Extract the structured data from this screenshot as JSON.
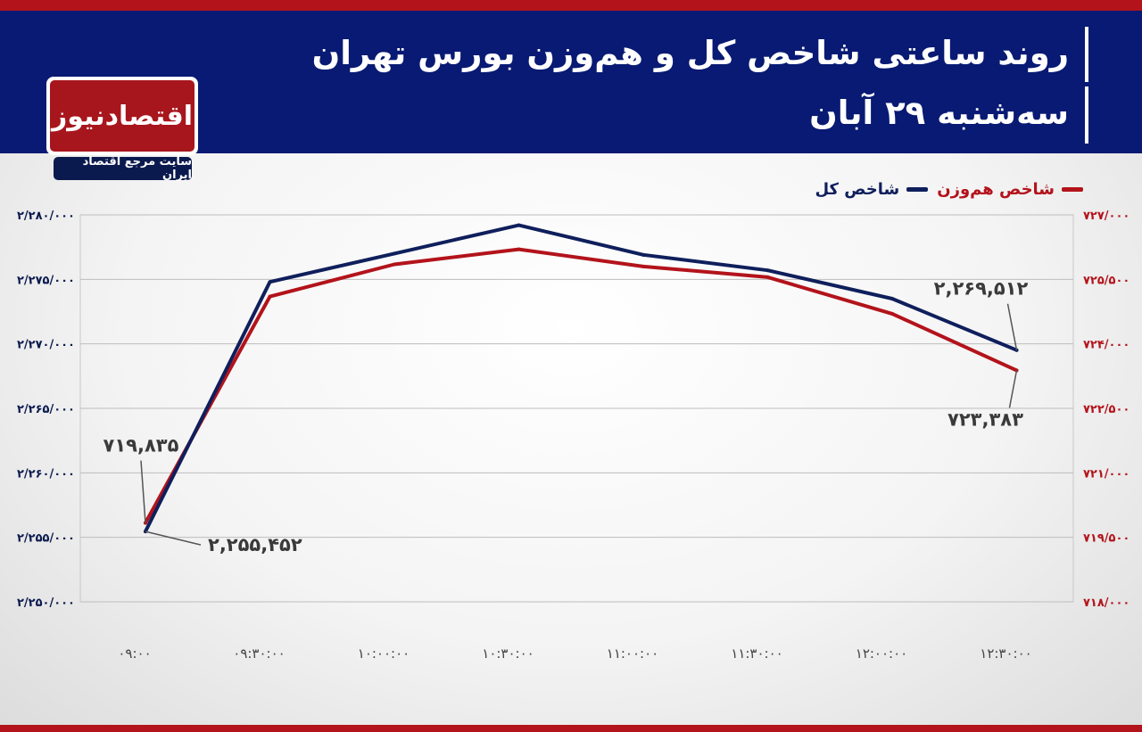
{
  "header": {
    "title": "روند ساعتی شاخص کل و هم‌وزن بورس تهران",
    "subtitle": "سه‌شنبه ۲۹ آبان"
  },
  "logo": {
    "name": "اقتصادنیوز",
    "tagline": "سایت مرجع اقتصاد ایران"
  },
  "colors": {
    "header_bg": "#081a73",
    "accent_red": "#b3131b",
    "total_line": "#0f1f5c",
    "equal_line": "#b3131b"
  },
  "chart_data": {
    "type": "line",
    "x": [
      "۰۹:۰۰",
      "۰۹:۳۰:۰۰",
      "۱۰:۰۰:۰۰",
      "۱۰:۳۰:۰۰",
      "۱۱:۰۰:۰۰",
      "۱۱:۳۰:۰۰",
      "۱۲:۰۰:۰۰",
      "۱۲:۳۰:۰۰"
    ],
    "series": [
      {
        "name": "شاخص کل",
        "axis": "left",
        "color": "#0f1f5c",
        "values": [
          2255452,
          2274800,
          2277000,
          2279200,
          2276900,
          2275700,
          2273500,
          2269512
        ]
      },
      {
        "name": "شاخص هم‌وزن",
        "axis": "right",
        "color": "#b3131b",
        "values": [
          719835,
          725100,
          725850,
          726200,
          725800,
          725550,
          724700,
          723383
        ]
      }
    ],
    "left_axis": {
      "ylim": [
        2250000,
        2280000
      ],
      "ticks": [
        2250000,
        2255000,
        2260000,
        2265000,
        2270000,
        2275000,
        2280000
      ],
      "tick_labels": [
        "۲/۲۵۰/۰۰۰",
        "۲/۲۵۵/۰۰۰",
        "۲/۲۶۰/۰۰۰",
        "۲/۲۶۵/۰۰۰",
        "۲/۲۷۰/۰۰۰",
        "۲/۲۷۵/۰۰۰",
        "۲/۲۸۰/۰۰۰"
      ]
    },
    "right_axis": {
      "ylim": [
        718000,
        727000
      ],
      "ticks": [
        718000,
        719500,
        721000,
        722500,
        724000,
        725500,
        727000
      ],
      "tick_labels": [
        "۷۱۸/۰۰۰",
        "۷۱۹/۵۰۰",
        "۷۲۱/۰۰۰",
        "۷۲۲/۵۰۰",
        "۷۲۴/۰۰۰",
        "۷۲۵/۵۰۰",
        "۷۲۷/۰۰۰"
      ]
    },
    "annotations": [
      {
        "text": "۷۱۹,۸۳۵",
        "series": 1,
        "point": 0
      },
      {
        "text": "۲,۲۵۵,۴۵۲",
        "series": 0,
        "point": 0
      },
      {
        "text": "۲,۲۶۹,۵۱۲",
        "series": 0,
        "point": 7
      },
      {
        "text": "۷۲۳,۳۸۳",
        "series": 1,
        "point": 7
      }
    ],
    "grid": true,
    "legend_position": "top-right"
  }
}
